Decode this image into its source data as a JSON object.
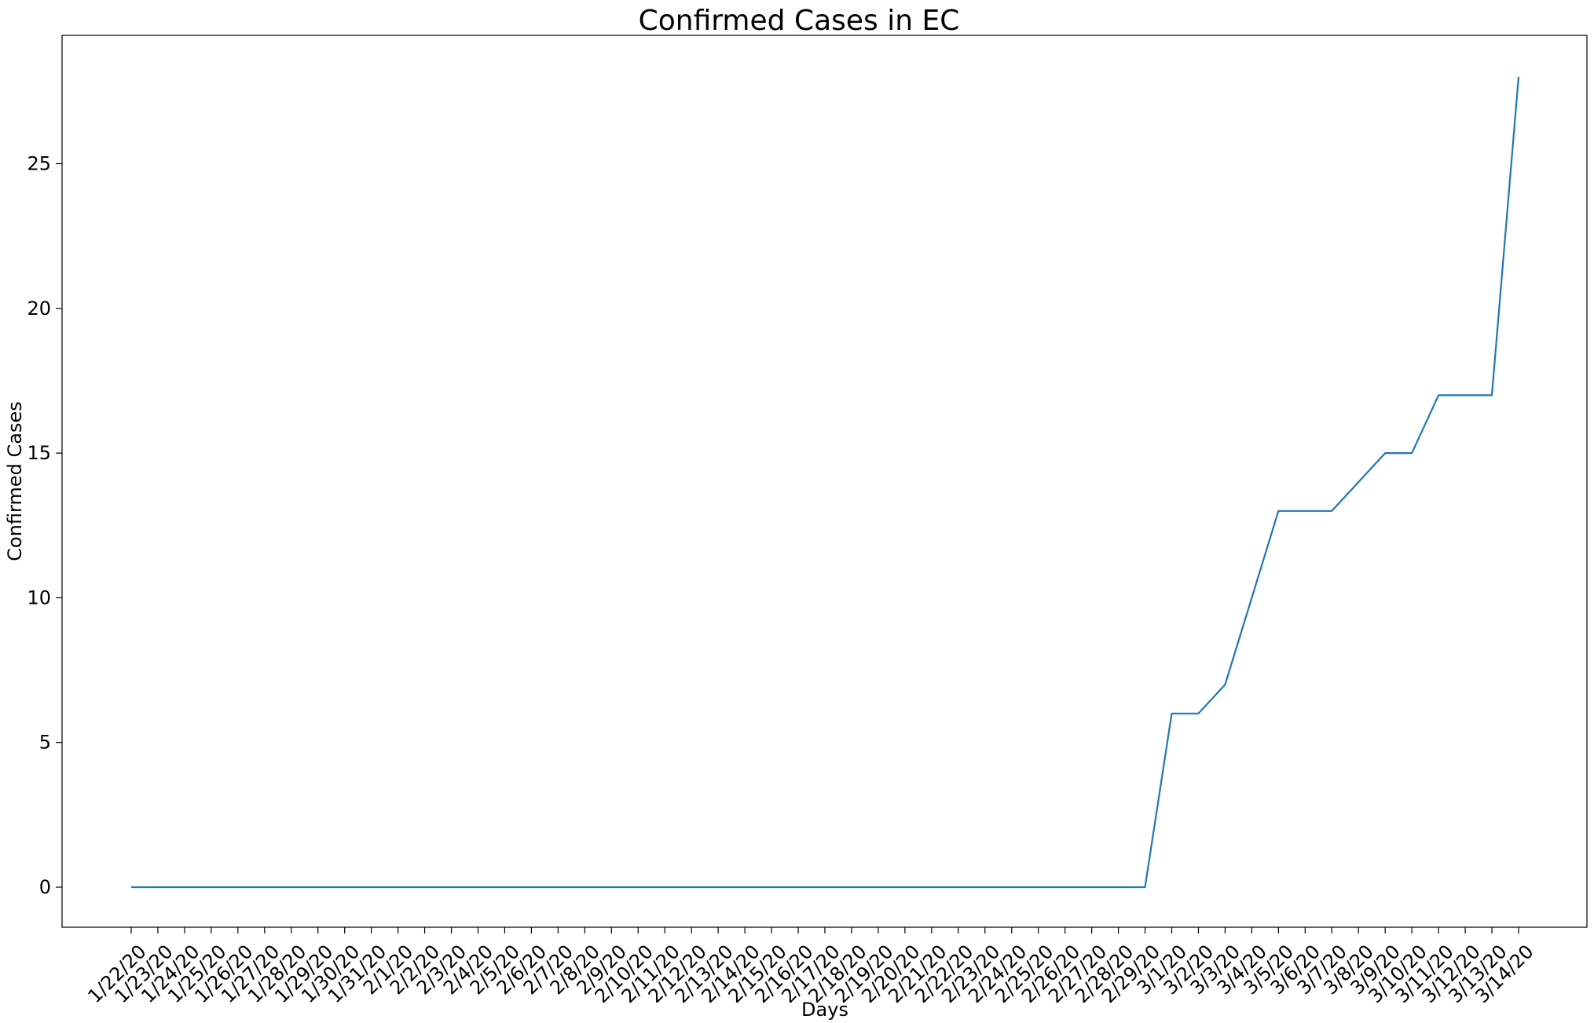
{
  "chart_data": {
    "type": "line",
    "title": "Confirmed Cases in EC",
    "xlabel": "Days",
    "ylabel": "Confirmed Cases",
    "ylim": [
      -1.4,
      29.4
    ],
    "yticks": [
      0,
      5,
      10,
      15,
      20,
      25
    ],
    "grid": false,
    "legend": "none",
    "line_color": "#1f77b4",
    "categories": [
      "1/22/20",
      "1/23/20",
      "1/24/20",
      "1/25/20",
      "1/26/20",
      "1/27/20",
      "1/28/20",
      "1/29/20",
      "1/30/20",
      "1/31/20",
      "2/1/20",
      "2/2/20",
      "2/3/20",
      "2/4/20",
      "2/5/20",
      "2/6/20",
      "2/7/20",
      "2/8/20",
      "2/9/20",
      "2/10/20",
      "2/11/20",
      "2/12/20",
      "2/13/20",
      "2/14/20",
      "2/15/20",
      "2/16/20",
      "2/17/20",
      "2/18/20",
      "2/19/20",
      "2/20/20",
      "2/21/20",
      "2/22/20",
      "2/23/20",
      "2/24/20",
      "2/25/20",
      "2/26/20",
      "2/27/20",
      "2/28/20",
      "2/29/20",
      "3/1/20",
      "3/2/20",
      "3/3/20",
      "3/4/20",
      "3/5/20",
      "3/6/20",
      "3/7/20",
      "3/8/20",
      "3/9/20",
      "3/10/20",
      "3/11/20",
      "3/12/20",
      "3/13/20",
      "3/14/20"
    ],
    "values": [
      0,
      0,
      0,
      0,
      0,
      0,
      0,
      0,
      0,
      0,
      0,
      0,
      0,
      0,
      0,
      0,
      0,
      0,
      0,
      0,
      0,
      0,
      0,
      0,
      0,
      0,
      0,
      0,
      0,
      0,
      0,
      0,
      0,
      0,
      0,
      0,
      0,
      0,
      0,
      6,
      6,
      7,
      10,
      13,
      13,
      13,
      14,
      15,
      15,
      17,
      17,
      17,
      28
    ]
  }
}
